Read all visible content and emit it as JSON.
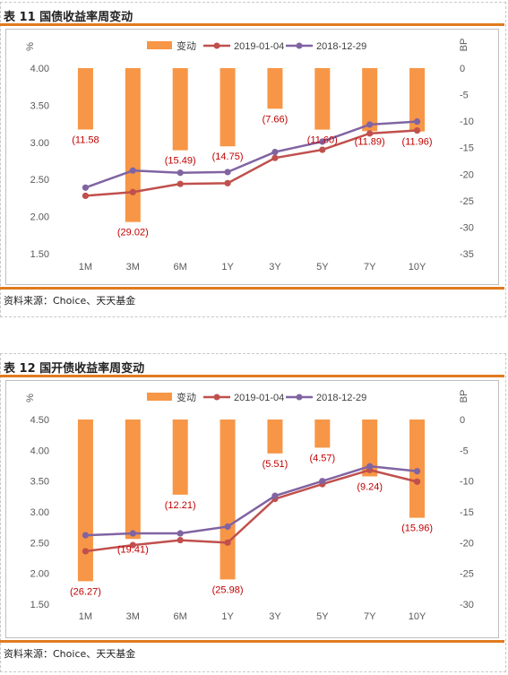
{
  "legend": {
    "change": "变动",
    "series_a": "2019-01-04",
    "series_b": "2018-12-29"
  },
  "colors": {
    "bar": "#f79646",
    "series_a": "#c0504d",
    "series_b": "#8064a2",
    "label": "#c00000",
    "accent_rule": "#e07b1f"
  },
  "panels": [
    {
      "title": "表 11   国债收益率周变动",
      "source": "资料来源：Choice、天天基金",
      "chart_data": {
        "type": "bar",
        "categories": [
          "1M",
          "3M",
          "6M",
          "1Y",
          "3Y",
          "5Y",
          "7Y",
          "10Y"
        ],
        "left_axis": {
          "label": "%",
          "min": 1.5,
          "max": 4.0,
          "ticks": [
            "4.00",
            "3.50",
            "3.00",
            "2.50",
            "2.00",
            "1.50"
          ]
        },
        "right_axis": {
          "label": "BP",
          "min": -35,
          "max": 0,
          "ticks": [
            "0",
            "-5",
            "-10",
            "-15",
            "-20",
            "-25",
            "-30",
            "-35"
          ]
        },
        "bars": {
          "name": "变动",
          "axis": "right",
          "values": [
            -11.58,
            -29.02,
            -15.49,
            -14.75,
            -7.66,
            -11.6,
            -11.89,
            -11.96
          ],
          "labels": [
            "(11.58",
            "(29.02)",
            "(15.49)",
            "(14.75)",
            "(7.66)",
            "(11.60)",
            "(11.89)",
            "(11.96)"
          ]
        },
        "series": [
          {
            "name": "2019-01-04",
            "axis": "left",
            "values": [
              2.28,
              2.33,
              2.44,
              2.45,
              2.79,
              2.9,
              3.12,
              3.16
            ]
          },
          {
            "name": "2018-12-29",
            "axis": "left",
            "values": [
              2.39,
              2.62,
              2.59,
              2.6,
              2.87,
              3.01,
              3.24,
              3.28
            ]
          }
        ]
      }
    },
    {
      "title": "表 12   国开债收益率周变动",
      "source": "资料来源：Choice、天天基金",
      "chart_data": {
        "type": "bar",
        "categories": [
          "1M",
          "3M",
          "6M",
          "1Y",
          "3Y",
          "5Y",
          "7Y",
          "10Y"
        ],
        "left_axis": {
          "label": "%",
          "min": 1.5,
          "max": 4.5,
          "ticks": [
            "4.50",
            "4.00",
            "3.50",
            "3.00",
            "2.50",
            "2.00",
            "1.50"
          ]
        },
        "right_axis": {
          "label": "BP",
          "min": -30,
          "max": 0,
          "ticks": [
            "0",
            "-5",
            "-10",
            "-15",
            "-20",
            "-25",
            "-30"
          ]
        },
        "bars": {
          "name": "变动",
          "axis": "right",
          "values": [
            -26.27,
            -19.41,
            -12.21,
            -25.98,
            -5.51,
            -4.57,
            -9.24,
            -15.96
          ],
          "labels": [
            "(26.27)",
            "(19.41)",
            "(12.21)",
            "(25.98)",
            "(5.51)",
            "(4.57)",
            "(9.24)",
            "(15.96)"
          ]
        },
        "series": [
          {
            "name": "2019-01-04",
            "axis": "left",
            "values": [
              2.36,
              2.46,
              2.54,
              2.5,
              3.21,
              3.45,
              3.68,
              3.49
            ]
          },
          {
            "name": "2018-12-29",
            "axis": "left",
            "values": [
              2.62,
              2.65,
              2.65,
              2.76,
              3.26,
              3.5,
              3.74,
              3.66
            ]
          }
        ]
      }
    }
  ]
}
